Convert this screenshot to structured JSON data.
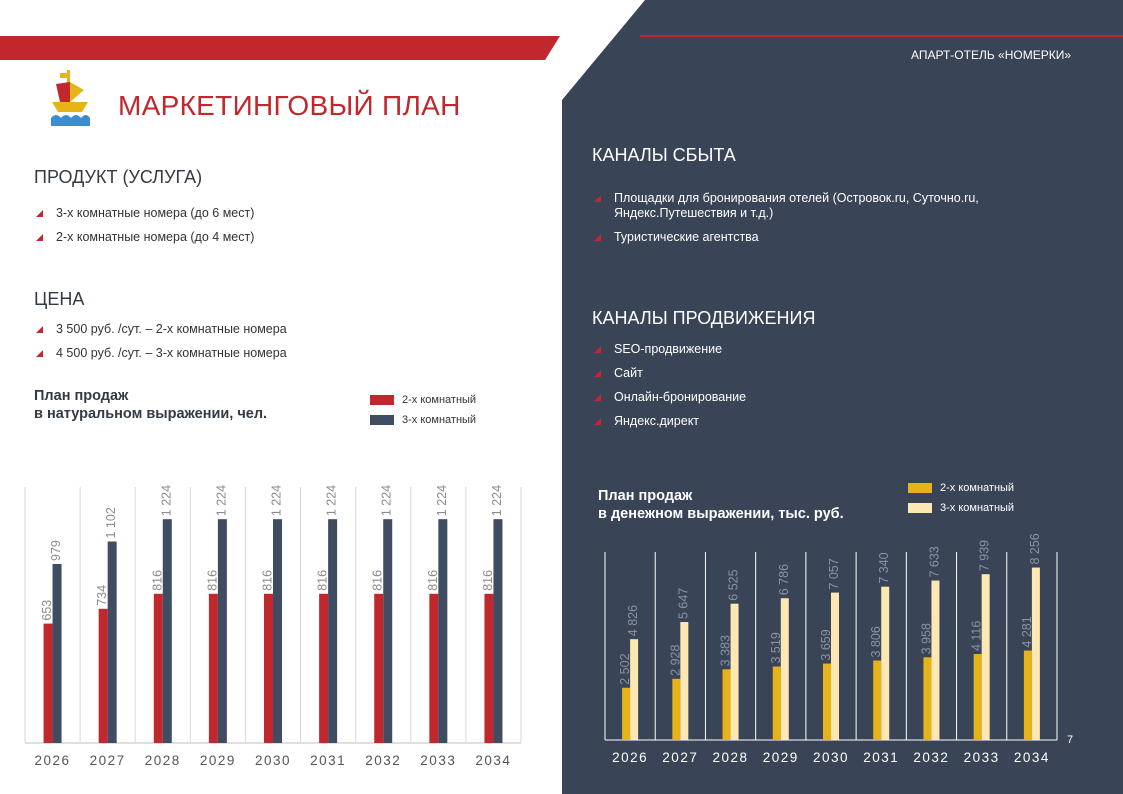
{
  "header": {
    "title": "МАРКЕТИНГОВЫЙ ПЛАН",
    "hotel": "АПАРТ-ОТЕЛЬ «НОМЕРКИ»"
  },
  "colors": {
    "red": "#c0282d",
    "navy": "#394457",
    "navy_bar": "#3f4c61",
    "gold": "#e6b419",
    "cream": "#fde7b3"
  },
  "product": {
    "title": "ПРОДУКТ (УСЛУГА)",
    "items": [
      "3-х комнатные номера (до 6 мест)",
      "2-х комнатные номера (до 4 мест)"
    ]
  },
  "price": {
    "title": "ЦЕНА",
    "items": [
      "3 500 руб. /сут. – 2-х комнатные номера",
      "4 500 руб. /сут. – 3-х комнатные номера"
    ]
  },
  "sales_channels": {
    "title": "КАНАЛЫ СБЫТА",
    "items": [
      "Площадки для бронирования отелей (Островок.ru, Суточно.ru, Яндекс.Путешествия и т.д.)",
      "Туристические агентства"
    ]
  },
  "promo_channels": {
    "title": "КАНАЛЫ ПРОДВИЖЕНИЯ",
    "items": [
      "SEO-продвижение",
      "Сайт",
      "Онлайн-бронирование",
      "Яндекс.директ"
    ]
  },
  "page_number": "7",
  "chart_data": [
    {
      "type": "bar",
      "title_line1": "План продаж",
      "title_line2": "в натуральном выражении, чел.",
      "categories": [
        "2026",
        "2027",
        "2028",
        "2029",
        "2030",
        "2031",
        "2032",
        "2033",
        "2034"
      ],
      "series": [
        {
          "name": "2-х комнатный",
          "values": [
            653,
            734,
            816,
            816,
            816,
            816,
            816,
            816,
            816
          ],
          "labels": [
            "653",
            "734",
            "816",
            "816",
            "816",
            "816",
            "816",
            "816",
            "816"
          ],
          "color": "#c0282d"
        },
        {
          "name": "3-х комнатный",
          "values": [
            979,
            1102,
            1224,
            1224,
            1224,
            1224,
            1224,
            1224,
            1224
          ],
          "labels": [
            "979",
            "1 102",
            "1 224",
            "1 224",
            "1 224",
            "1 224",
            "1 224",
            "1 224",
            "1 224"
          ],
          "color": "#3f4c61"
        }
      ],
      "ylim": [
        0,
        1400
      ],
      "legend": "top-right",
      "grid": false
    },
    {
      "type": "bar",
      "title_line1": "План продаж",
      "title_line2": "в денежном выражении, тыс. руб.",
      "categories": [
        "2026",
        "2027",
        "2028",
        "2029",
        "2030",
        "2031",
        "2032",
        "2033",
        "2034"
      ],
      "series": [
        {
          "name": "2-х комнатный",
          "values": [
            2502,
            2928,
            3383,
            3519,
            3659,
            3806,
            3958,
            4116,
            4281
          ],
          "labels": [
            "2 502",
            "2 928",
            "3 383",
            "3 519",
            "3 659",
            "3 806",
            "3 958",
            "4 116",
            "4 281"
          ],
          "color": "#e6b419"
        },
        {
          "name": "3-х комнатный",
          "values": [
            4826,
            5647,
            6525,
            6786,
            7057,
            7340,
            7633,
            7939,
            8256
          ],
          "labels": [
            "4 826",
            "5 647",
            "6 525",
            "6 786",
            "7 057",
            "7 340",
            "7 633",
            "7 939",
            "8 256"
          ],
          "color": "#fde7b3"
        }
      ],
      "ylim": [
        0,
        9000
      ],
      "legend": "top-right",
      "grid": false
    }
  ]
}
